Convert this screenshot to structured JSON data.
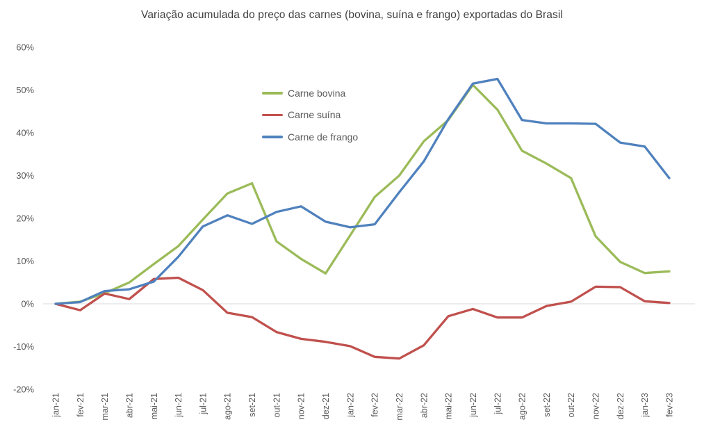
{
  "chart_data": {
    "type": "line",
    "title": "Variação acumulada do preço das carnes (bovina, suína e frango) exportadas do Brasil",
    "xlabel": "",
    "ylabel": "",
    "x_categories": [
      "jan-21",
      "fev-21",
      "mar-21",
      "abr-21",
      "mai-21",
      "jun-21",
      "jul-21",
      "ago-21",
      "set-21",
      "out-21",
      "nov-21",
      "dez-21",
      "jan-22",
      "fev-22",
      "mar-22",
      "abr-22",
      "mai-22",
      "jun-22",
      "jul-22",
      "ago-22",
      "set-22",
      "out-22",
      "nov-22",
      "dez-22",
      "jan-23",
      "fev-23"
    ],
    "y_tick_labels": [
      "60%",
      "50%",
      "40%",
      "30%",
      "20%",
      "10%",
      "0%",
      "-10%",
      "-20%"
    ],
    "ylim": [
      -20,
      60
    ],
    "y_tick_step": 10,
    "grid": "zero-line-only",
    "legend_position": "inside-upper-left",
    "series": [
      {
        "name": "Carne bovina",
        "color": "#9BBB59",
        "values": [
          0,
          0.5,
          2.5,
          5.0,
          9.3,
          13.5,
          19.7,
          25.8,
          28.2,
          14.6,
          10.5,
          7.1,
          16.0,
          25.0,
          30.0,
          38.0,
          43.0,
          51.2,
          45.4,
          35.8,
          32.8,
          29.4,
          15.8,
          9.8,
          7.2,
          7.6
        ]
      },
      {
        "name": "Carne suína",
        "color": "#C0504D",
        "values": [
          0,
          -1.5,
          2.4,
          1.1,
          5.8,
          6.1,
          3.2,
          -2.1,
          -3.1,
          -6.6,
          -8.2,
          -8.9,
          -9.9,
          -12.4,
          -12.8,
          -9.7,
          -2.9,
          -1.2,
          -3.2,
          -3.2,
          -0.5,
          0.5,
          4.0,
          3.9,
          0.6,
          0.2
        ]
      },
      {
        "name": "Carne de frango",
        "color": "#4F81BD",
        "values": [
          0,
          0.4,
          3.0,
          3.4,
          5.2,
          11.0,
          18.1,
          20.7,
          18.7,
          21.5,
          22.8,
          19.2,
          17.9,
          18.6,
          26.1,
          33.3,
          43.2,
          51.5,
          52.6,
          43.0,
          42.2,
          42.2,
          42.1,
          37.7,
          36.8,
          29.4
        ]
      }
    ],
    "colors": {
      "title_text": "#404040",
      "axis_text": "#595959",
      "legend_text": "#595959",
      "zero_gridline": "#D9D9D9",
      "background": "#FFFFFF"
    }
  }
}
